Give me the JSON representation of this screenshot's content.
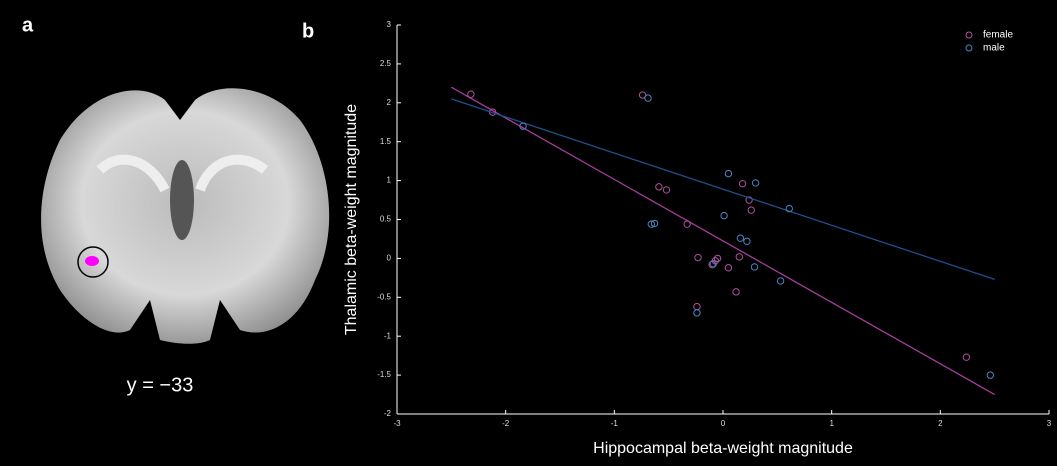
{
  "figure": {
    "panel_a_label": "a",
    "panel_b_label": "b",
    "caption_a": "y = −33"
  },
  "chart_data": {
    "type": "scatter",
    "xlabel": "Hippocampal beta-weight magnitude",
    "ylabel": "Thalamic beta-weight magnitude",
    "xlim": [
      -3,
      3
    ],
    "ylim": [
      -2,
      3
    ],
    "xticks": [
      -3,
      -2,
      -1,
      0,
      1,
      2,
      3
    ],
    "yticks": [
      -2,
      -1.5,
      -1,
      -0.5,
      0,
      0.5,
      1,
      1.5,
      2,
      2.5,
      3
    ],
    "legend": "upper right",
    "grid": false,
    "series": [
      {
        "name": "female",
        "color": "#b0509e",
        "line_color": "#a43c9e",
        "x": [
          -2.32,
          -2.12,
          -0.74,
          -0.59,
          -0.52,
          -0.33,
          -0.23,
          -0.24,
          -0.1,
          -0.07,
          -0.05,
          0.05,
          0.12,
          0.15,
          0.18,
          0.24,
          0.26,
          2.24
        ],
        "values": [
          2.11,
          1.88,
          2.1,
          0.92,
          0.88,
          0.44,
          0.01,
          -0.62,
          -0.08,
          -0.03,
          0.0,
          -0.12,
          -0.43,
          0.02,
          0.96,
          0.75,
          0.62,
          -1.27
        ],
        "fit": {
          "x": [
            -2.5,
            2.5
          ],
          "values": [
            2.2,
            -1.75
          ]
        }
      },
      {
        "name": "male",
        "color": "#4a86c0",
        "line_color": "#1f4f8a",
        "x": [
          -1.84,
          -0.69,
          -0.66,
          -0.63,
          -0.24,
          -0.09,
          0.01,
          0.05,
          0.16,
          0.22,
          0.3,
          0.29,
          0.61,
          0.53,
          2.46
        ],
        "values": [
          1.7,
          2.06,
          0.44,
          0.45,
          -0.7,
          -0.07,
          0.55,
          1.09,
          0.26,
          0.22,
          0.97,
          -0.11,
          0.64,
          -0.29,
          -1.5
        ],
        "fit": {
          "x": [
            -2.5,
            2.5
          ],
          "values": [
            2.05,
            -0.27
          ]
        }
      }
    ]
  }
}
